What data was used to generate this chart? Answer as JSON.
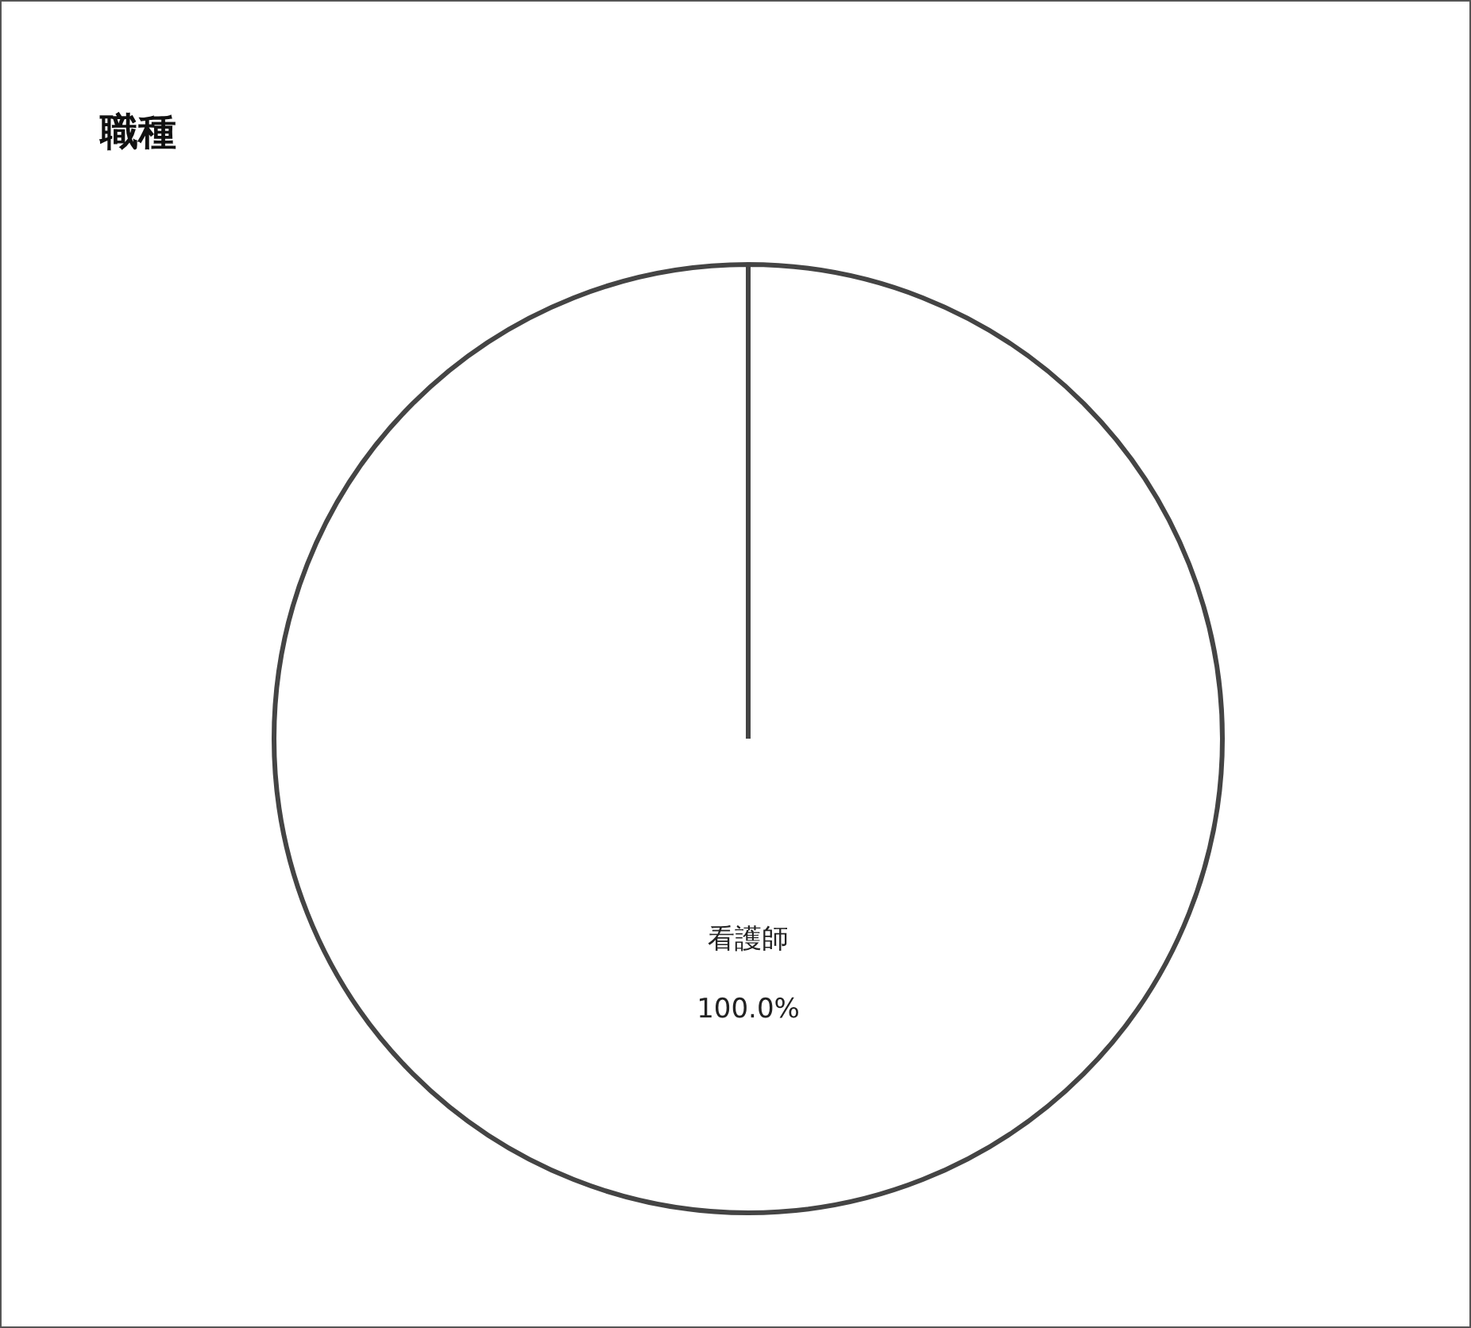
{
  "chart_data": {
    "type": "pie",
    "title": "職種",
    "categories": [
      "看護師"
    ],
    "values": [
      100
    ],
    "colors": [
      "#ffffff"
    ],
    "value_labels": [
      "100.0%"
    ],
    "legend": false
  }
}
